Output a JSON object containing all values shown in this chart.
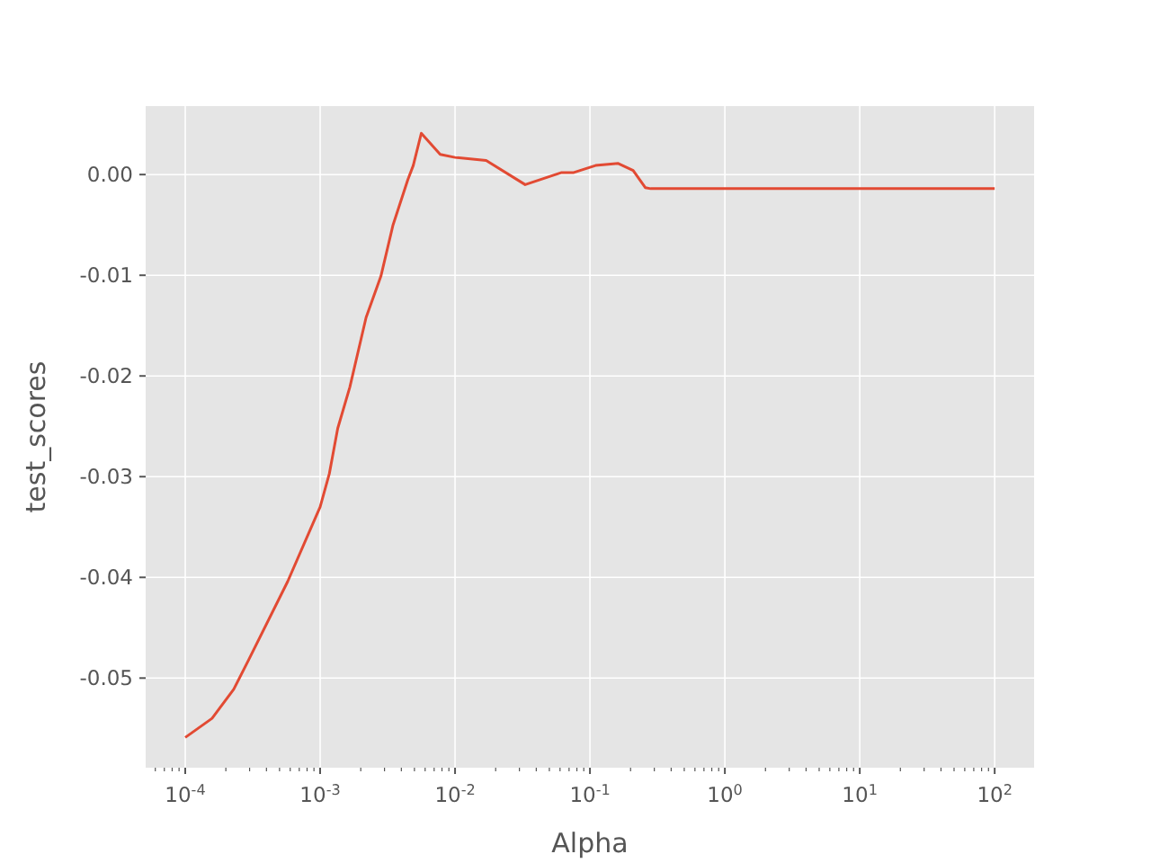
{
  "chart_data": {
    "type": "line",
    "xlabel": "Alpha",
    "ylabel": "test_scores",
    "log": "x",
    "grid": true,
    "xlim": [
      5.09e-05,
      196
    ],
    "ylim": [
      -0.0589,
      0.0068
    ],
    "xticks": [
      {
        "value": 0.0001,
        "label": "10$^{-4}$"
      },
      {
        "value": 0.001,
        "label": "10$^{-3}$"
      },
      {
        "value": 0.01,
        "label": "10$^{-2}$"
      },
      {
        "value": 0.1,
        "label": "10$^{-1}$"
      },
      {
        "value": 1,
        "label": "10$^{0}$"
      },
      {
        "value": 10,
        "label": "10$^{1}$"
      },
      {
        "value": 100,
        "label": "10$^{2}$"
      }
    ],
    "yticks": [
      {
        "value": -0.05,
        "label": "-0.05"
      },
      {
        "value": -0.04,
        "label": "-0.04"
      },
      {
        "value": -0.03,
        "label": "-0.03"
      },
      {
        "value": -0.02,
        "label": "-0.02"
      },
      {
        "value": -0.01,
        "label": "-0.01"
      },
      {
        "value": 0,
        "label": "0.00"
      }
    ],
    "series": [
      {
        "color": "#e24a33",
        "x": [
          0.0001,
          0.000158,
          0.000229,
          0.000295,
          0.000575,
          0.001,
          0.00117,
          0.00135,
          0.00166,
          0.00219,
          0.00282,
          0.00347,
          0.00447,
          0.0049,
          0.00562,
          0.00776,
          0.01,
          0.017,
          0.0331,
          0.0617,
          0.0759,
          0.11,
          0.162,
          0.209,
          0.257,
          0.282,
          100
        ],
        "values": [
          -0.0559,
          -0.054,
          -0.0511,
          -0.0482,
          -0.0404,
          -0.033,
          -0.0297,
          -0.0252,
          -0.0211,
          -0.0142,
          -0.0101,
          -0.005,
          -0.0005,
          0.0009,
          0.0041,
          0.002,
          0.0017,
          0.0014,
          -0.001,
          0.0002,
          0.0002,
          0.0009,
          0.0011,
          0.0004,
          -0.0013,
          -0.0014,
          -0.0014
        ]
      }
    ]
  }
}
